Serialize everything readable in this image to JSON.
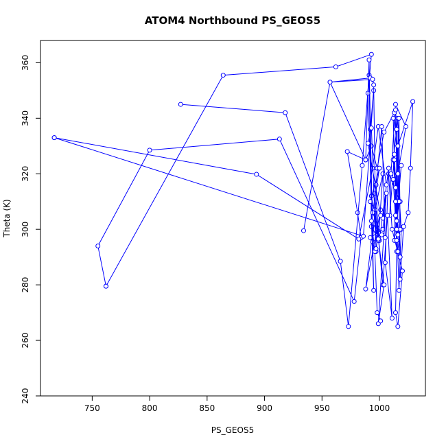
{
  "chart_data": {
    "type": "line",
    "title": "ATOM4 Northbound PS_GEOS5",
    "xlabel": "PS_GEOS5",
    "ylabel": "Theta (K)",
    "xlim": [
      705,
      1040
    ],
    "ylim": [
      240,
      368
    ],
    "xticks": [
      750,
      800,
      850,
      900,
      950,
      1000
    ],
    "yticks": [
      240,
      260,
      280,
      300,
      320,
      340,
      360
    ],
    "grid": false,
    "series_color": "#0000ff",
    "markers": "open-circle",
    "series": [
      {
        "x": [
          762,
          755,
          800,
          913,
          978,
          984,
          981,
          972,
          988,
          993,
          998,
          1004,
          1013,
          1018,
          1008,
          1011,
          1020,
          1016,
          1014,
          1015,
          1012,
          1017,
          1019,
          1016,
          1023,
          1014,
          1010,
          1009,
          1013,
          1016,
          1014,
          1015,
          1018,
          1012,
          1016,
          1017,
          1015,
          1019,
          1013,
          1014,
          1016,
          1018,
          1021,
          1025,
          1027,
          1029,
          1016,
          1014,
          1012,
          1015,
          1016,
          1018,
          1017,
          1014,
          1013,
          1015,
          1017
        ],
        "y": [
          279.5,
          294,
          328.5,
          332.5,
          274,
          297,
          306,
          328,
          325,
          330,
          322,
          335,
          342,
          310,
          320,
          300,
          285,
          265,
          270,
          292,
          340,
          278,
          300,
          320,
          337,
          345,
          320,
          305,
          327,
          298,
          343,
          336,
          290,
          325,
          340,
          310,
          303,
          323,
          296,
          315,
          330,
          282,
          301,
          306,
          322,
          346,
          330,
          305,
          318,
          296,
          292,
          300,
          340,
          310,
          325,
          300,
          340
        ]
      },
      {
        "x": [
          717,
          893,
          982,
          994,
          999,
          1006,
          1003,
          992,
          997,
          1001,
          988,
          995,
          1000,
          1008,
          1005,
          1011,
          1007,
          1003,
          999,
          996
        ],
        "y": [
          333,
          319.8,
          296.5,
          322,
          337,
          316,
          300,
          297,
          292,
          307,
          278.5,
          302,
          296,
          322,
          288,
          268,
          305,
          280,
          297,
          313
        ]
      },
      {
        "x": [
          717,
          986,
          995,
          992,
          993,
          999,
          1003,
          996,
          1004,
          999,
          1006,
          1003
        ],
        "y": [
          333,
          297.5,
          350,
          336,
          312,
          296,
          320,
          307,
          280,
          266,
          313,
          304
        ]
      },
      {
        "x": [
          827,
          918,
          966,
          973,
          985,
          991,
          993,
          999,
          997,
          1002,
          1005
        ],
        "y": [
          345,
          342,
          288.5,
          265,
          323,
          355.5,
          301,
          296.5,
          316,
          337,
          297
        ]
      },
      {
        "x": [
          762,
          864,
          962,
          993,
          990,
          994,
          996,
          992,
          1000,
          994,
          1002
        ],
        "y": [
          279.5,
          355.5,
          358.5,
          363,
          349,
          295.5,
          307,
          310,
          322,
          306,
          298
        ]
      },
      {
        "x": [
          934,
          957,
          988,
          991,
          995,
          993,
          996,
          998,
          1001
        ],
        "y": [
          299.5,
          353,
          325,
          361,
          278,
          303,
          292,
          270,
          267
        ]
      },
      {
        "x": [
          992,
          957,
          994,
          995,
          997,
          993,
          990,
          1001
        ],
        "y": [
          354.5,
          353,
          354,
          352,
          293,
          336.5,
          331,
          305
        ]
      }
    ]
  }
}
